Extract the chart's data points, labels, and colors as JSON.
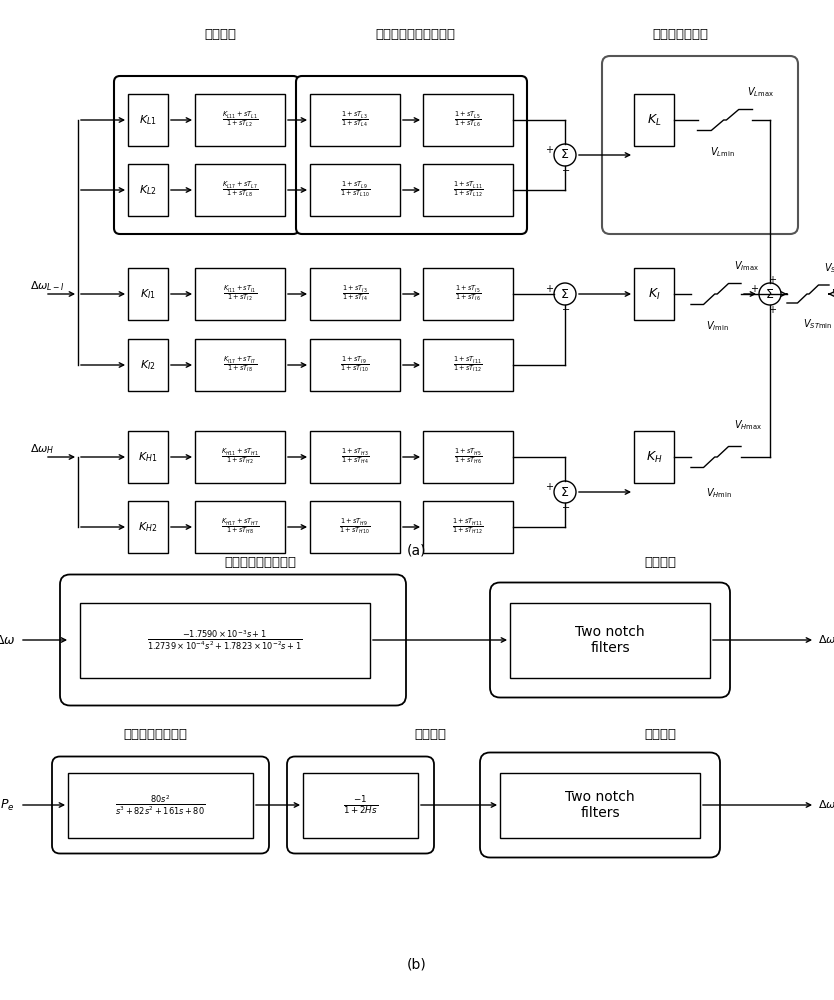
{
  "bg_color": "#ffffff",
  "label_a": "(a)",
  "label_b": "(b)",
  "ch_bandpass": "带通环节",
  "ch_phase": "超前滞后相位补偿环节",
  "ch_gain": "增益及限幅环节",
  "ch_midlow": "中低频段速度传感器",
  "ch_optional1": "可选环节",
  "ch_high": "高频段速度传感器",
  "ch_inertia": "惯性环节",
  "ch_optional2": "可选环节"
}
